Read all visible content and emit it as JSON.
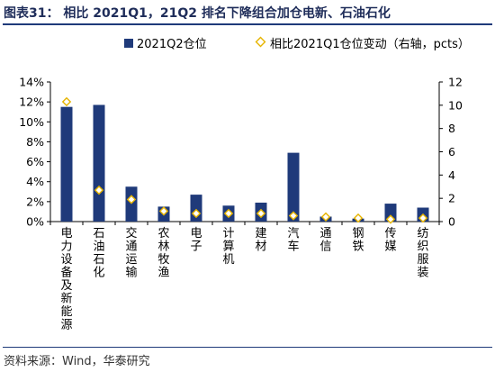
{
  "title": "图表31：  相比 2021Q1，21Q2 排名下降组合加仓电新、石油石化",
  "source": "资料来源：Wind，华泰研究",
  "colors": {
    "bar": "#1f3a7a",
    "marker_fill": "#ffffff",
    "marker_stroke": "#e6b400",
    "axis": "#000000"
  },
  "chart_data": {
    "type": "bar",
    "categories": [
      "电力设备及新能源",
      "石油石化",
      "交通运输",
      "农林牧渔",
      "电子",
      "计算机",
      "建材",
      "汽车",
      "通信",
      "钢铁",
      "传媒",
      "纺织服装"
    ],
    "series": [
      {
        "name": "2021Q2仓位",
        "type": "bar",
        "axis": "left",
        "values": [
          11.5,
          11.7,
          3.5,
          1.5,
          2.7,
          1.6,
          1.9,
          6.9,
          0.5,
          0.3,
          1.8,
          1.4
        ]
      },
      {
        "name": "相比2021Q1仓位变动（右轴，pcts）",
        "type": "scatter",
        "axis": "right",
        "values": [
          10.3,
          2.7,
          1.9,
          0.9,
          0.7,
          0.7,
          0.7,
          0.5,
          0.4,
          0.3,
          0.2,
          0.3
        ]
      }
    ],
    "y_left": {
      "ticks": [
        "0%",
        "2%",
        "4%",
        "6%",
        "8%",
        "10%",
        "12%",
        "14%"
      ],
      "lim": [
        0,
        14
      ]
    },
    "y_right": {
      "ticks": [
        "0",
        "2",
        "4",
        "6",
        "8",
        "10",
        "12"
      ],
      "lim": [
        0,
        12
      ]
    },
    "legend_position": "top",
    "grid": false
  }
}
